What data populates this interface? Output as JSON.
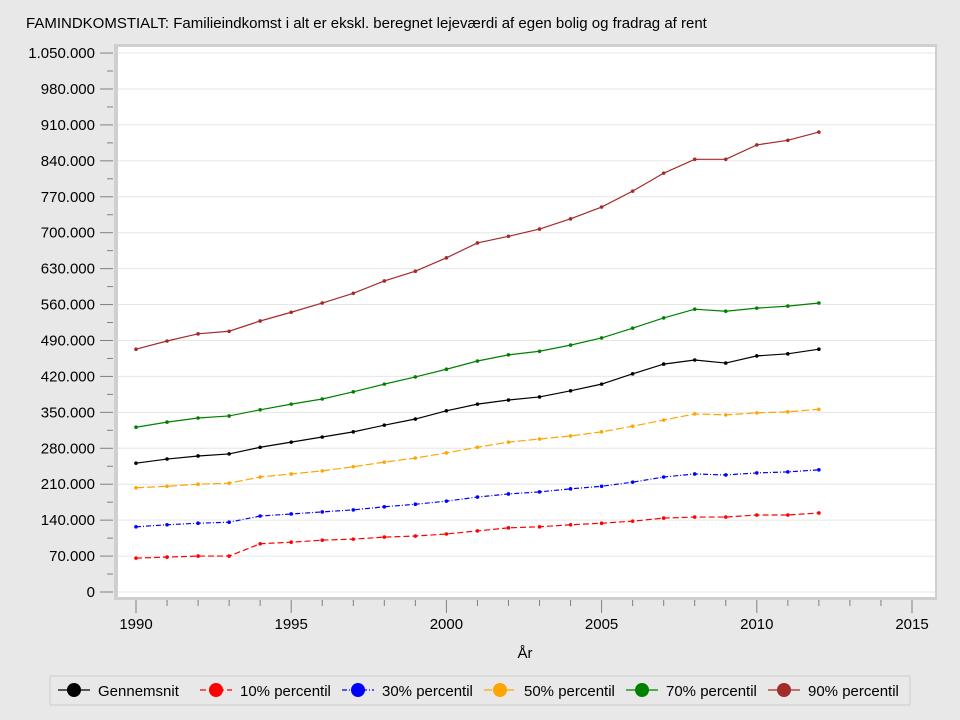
{
  "chart_data": {
    "type": "line",
    "title": "FAMINDKOMSTIALT: Familieindkomst i alt er ekskl. beregnet lejeværdi af egen bolig og fradrag af rent",
    "xlabel": "År",
    "ylabel": "",
    "xlim": [
      1989.4,
      2015.7
    ],
    "ylim": [
      0,
      1050000
    ],
    "xticks": [
      1990,
      1995,
      2000,
      2005,
      2010,
      2015
    ],
    "yticks": [
      0,
      70000,
      140000,
      210000,
      280000,
      350000,
      420000,
      490000,
      560000,
      630000,
      700000,
      770000,
      840000,
      910000,
      980000,
      1050000
    ],
    "ytick_labels": [
      "0",
      "70.000",
      "140.000",
      "210.000",
      "280.000",
      "350.000",
      "420.000",
      "490.000",
      "560.000",
      "630.000",
      "700.000",
      "770.000",
      "840.000",
      "910.000",
      "980.000",
      "1.050.000"
    ],
    "grid": true,
    "legend_placement": "bottom",
    "x": [
      1990,
      1991,
      1992,
      1993,
      1994,
      1995,
      1996,
      1997,
      1998,
      1999,
      2000,
      2001,
      2002,
      2003,
      2004,
      2005,
      2006,
      2007,
      2008,
      2009,
      2010,
      2011,
      2012
    ],
    "series": [
      {
        "name": "Gennemsnit",
        "color": "#000000",
        "dash": "",
        "values": [
          251000,
          259000,
          265000,
          269000,
          282000,
          292000,
          302000,
          312000,
          325000,
          337000,
          353000,
          366000,
          374000,
          380000,
          392000,
          405000,
          425000,
          444000,
          452000,
          446000,
          460000,
          464000,
          473000
        ]
      },
      {
        "name": "10% percentil",
        "color": "#ff0000",
        "dash": "6,3",
        "values": [
          66000,
          68000,
          70000,
          70000,
          94000,
          97000,
          101000,
          103000,
          107000,
          109000,
          113000,
          119000,
          125000,
          127000,
          131000,
          134000,
          138000,
          144000,
          146000,
          146000,
          150000,
          150000,
          154000
        ]
      },
      {
        "name": "30% percentil",
        "color": "#0000ff",
        "dash": "5,2,1,2",
        "values": [
          127000,
          131000,
          134000,
          136000,
          148000,
          152000,
          156000,
          160000,
          166000,
          171000,
          177000,
          185000,
          191000,
          195000,
          201000,
          206000,
          214000,
          224000,
          230000,
          228000,
          232000,
          234000,
          238000
        ]
      },
      {
        "name": "50% percentil",
        "color": "#ffa500",
        "dash": "8,3",
        "values": [
          203000,
          206000,
          210000,
          212000,
          224000,
          230000,
          236000,
          244000,
          253000,
          261000,
          271000,
          282000,
          292000,
          298000,
          304000,
          312000,
          323000,
          335000,
          347000,
          345000,
          349000,
          351000,
          356000
        ]
      },
      {
        "name": "70% percentil",
        "color": "#008000",
        "dash": "",
        "values": [
          321000,
          331000,
          339000,
          343000,
          355000,
          366000,
          376000,
          390000,
          405000,
          419000,
          434000,
          450000,
          462000,
          469000,
          481000,
          495000,
          514000,
          534000,
          551000,
          547000,
          553000,
          557000,
          563000
        ]
      },
      {
        "name": "90% percentil",
        "color": "#a52a2a",
        "dash": "",
        "values": [
          473000,
          489000,
          503000,
          508000,
          528000,
          545000,
          563000,
          582000,
          606000,
          625000,
          651000,
          680000,
          693000,
          707000,
          727000,
          750000,
          781000,
          816000,
          843000,
          843000,
          871000,
          880000,
          896000
        ]
      }
    ]
  }
}
